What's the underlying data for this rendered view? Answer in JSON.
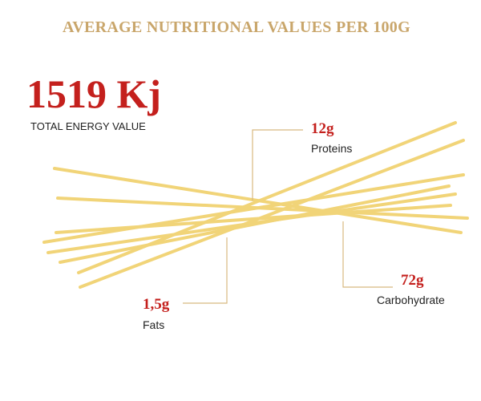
{
  "header": {
    "title": "AVERAGE NUTRITIONAL VALUES PER 100G"
  },
  "energy": {
    "value": "1519 Kj",
    "label": "TOTAL ENERGY VALUE"
  },
  "nutrients": [
    {
      "value": "12g",
      "label": "Proteins"
    },
    {
      "value": "1,5g",
      "label": "Fats"
    },
    {
      "value": "72g",
      "label": "Carbohydrate"
    }
  ]
}
